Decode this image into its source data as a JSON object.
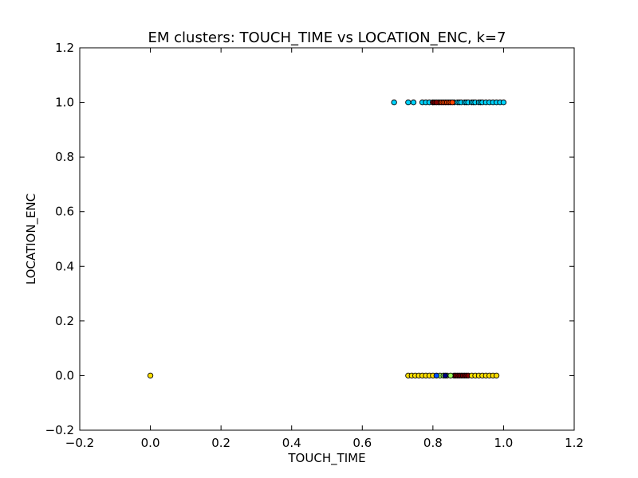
{
  "chart_data": {
    "type": "scatter",
    "title": "EM clusters: TOUCH_TIME vs LOCATION_ENC, k=7",
    "xlabel": "TOUCH_TIME",
    "ylabel": "LOCATION_ENC",
    "xlim": [
      -0.2,
      1.2
    ],
    "ylim": [
      -0.2,
      1.2
    ],
    "x_ticks": [
      "−0.2",
      "0.0",
      "0.2",
      "0.4",
      "0.6",
      "0.8",
      "1.0",
      "1.2"
    ],
    "y_ticks": [
      "−0.2",
      "0.0",
      "0.2",
      "0.4",
      "0.6",
      "0.8",
      "1.0",
      "1.2"
    ],
    "grid": false,
    "legend": "none",
    "series": [
      {
        "color": "#00d4ff",
        "points": [
          [
            0.69,
            1
          ],
          [
            0.73,
            1
          ],
          [
            0.745,
            1
          ],
          [
            0.77,
            1
          ],
          [
            0.78,
            1
          ],
          [
            0.79,
            1
          ],
          [
            0.8,
            1
          ],
          [
            0.82,
            1
          ],
          [
            0.86,
            1
          ],
          [
            0.87,
            1
          ],
          [
            0.875,
            1
          ],
          [
            0.88,
            1
          ],
          [
            0.89,
            1
          ],
          [
            0.895,
            1
          ],
          [
            0.9,
            1
          ],
          [
            0.91,
            1
          ],
          [
            0.915,
            1
          ],
          [
            0.92,
            1
          ],
          [
            0.93,
            1
          ],
          [
            0.935,
            1
          ],
          [
            0.94,
            1
          ],
          [
            0.95,
            1
          ],
          [
            0.96,
            1
          ],
          [
            0.97,
            1
          ],
          [
            0.98,
            1
          ],
          [
            0.99,
            1
          ],
          [
            1.0,
            1
          ]
        ]
      },
      {
        "color": "#ff4500",
        "points": [
          [
            0.815,
            1
          ],
          [
            0.825,
            1
          ],
          [
            0.83,
            1
          ],
          [
            0.835,
            1
          ],
          [
            0.84,
            1
          ],
          [
            0.845,
            1
          ],
          [
            0.85,
            1
          ],
          [
            0.855,
            1
          ]
        ]
      },
      {
        "color": "#800000",
        "points": [
          [
            0.8,
            1
          ],
          [
            0.805,
            1
          ],
          [
            0.81,
            1
          ],
          [
            0.86,
            0
          ],
          [
            0.865,
            0
          ],
          [
            0.87,
            0
          ],
          [
            0.875,
            0
          ],
          [
            0.88,
            0
          ],
          [
            0.885,
            0
          ],
          [
            0.89,
            0
          ],
          [
            0.895,
            0
          ],
          [
            0.9,
            0
          ]
        ]
      },
      {
        "color": "#ffe000",
        "points": [
          [
            0.0,
            0
          ],
          [
            0.73,
            0
          ],
          [
            0.74,
            0
          ],
          [
            0.75,
            0
          ],
          [
            0.76,
            0
          ],
          [
            0.77,
            0
          ],
          [
            0.78,
            0
          ],
          [
            0.79,
            0
          ],
          [
            0.8,
            0
          ],
          [
            0.91,
            0
          ],
          [
            0.92,
            0
          ],
          [
            0.93,
            0
          ],
          [
            0.94,
            0
          ],
          [
            0.95,
            0
          ],
          [
            0.96,
            0
          ],
          [
            0.97,
            0
          ],
          [
            0.98,
            0
          ]
        ]
      },
      {
        "color": "#9cff5a",
        "points": [
          [
            0.82,
            0
          ],
          [
            0.83,
            0
          ],
          [
            0.84,
            0
          ],
          [
            0.85,
            0
          ]
        ]
      },
      {
        "color": "#0050ff",
        "points": [
          [
            0.81,
            0
          ]
        ]
      },
      {
        "color": "#000080",
        "points": [
          [
            0.835,
            0
          ]
        ]
      }
    ]
  }
}
